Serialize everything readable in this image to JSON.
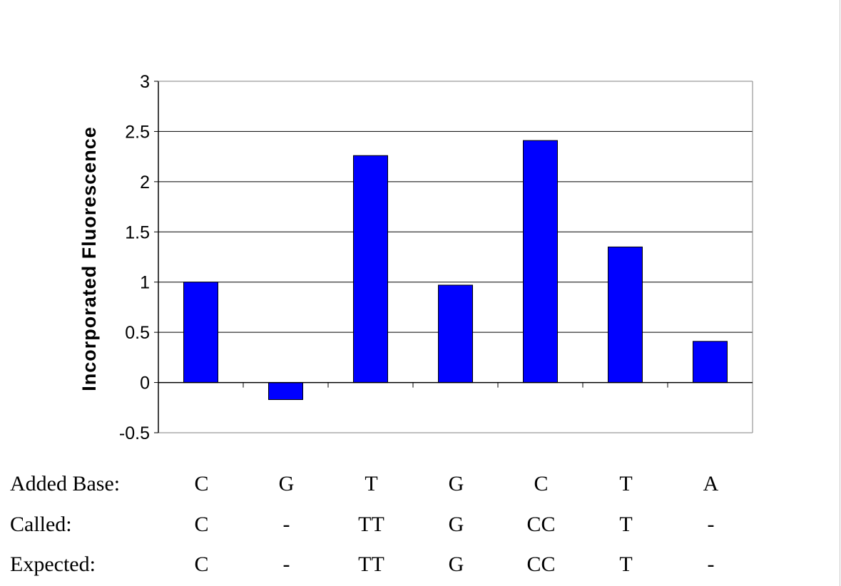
{
  "chart_data": {
    "type": "bar",
    "title": "",
    "xlabel": "",
    "ylabel": "Incorporated Fluorescence",
    "ylim": [
      -0.5,
      3
    ],
    "yticks": [
      -0.5,
      0,
      0.5,
      1,
      1.5,
      2,
      2.5,
      3
    ],
    "ytick_labels": [
      "-0.5",
      "0",
      "0.5",
      "1",
      "1.5",
      "2",
      "2.5",
      "3"
    ],
    "grid": "horizontal",
    "legend": "none",
    "values": [
      1.0,
      -0.17,
      2.26,
      0.97,
      2.41,
      1.35,
      0.41
    ],
    "bar_color": "#0000ff",
    "rows": [
      {
        "label": "Added Base:",
        "cells": [
          "C",
          "G",
          "T",
          "G",
          "C",
          "T",
          "A"
        ]
      },
      {
        "label": "Called:",
        "cells": [
          "C",
          "-",
          "TT",
          "G",
          "CC",
          "T",
          "-"
        ]
      },
      {
        "label": "Expected:",
        "cells": [
          "C",
          "-",
          "TT",
          "G",
          "CC",
          "T",
          "-"
        ]
      }
    ]
  }
}
